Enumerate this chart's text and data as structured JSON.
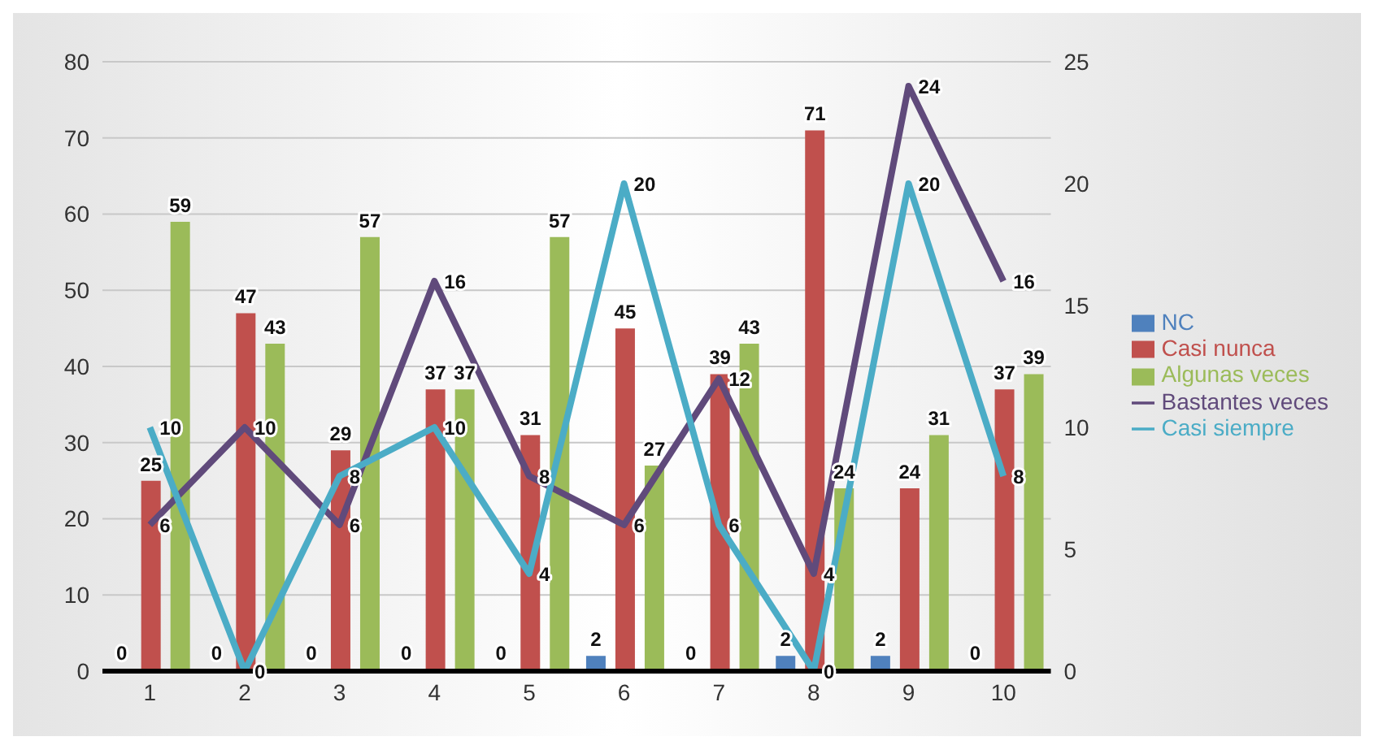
{
  "chart_data": {
    "type": "bar",
    "categories": [
      "1",
      "2",
      "3",
      "4",
      "5",
      "6",
      "7",
      "8",
      "9",
      "10"
    ],
    "series": [
      {
        "name": "NC",
        "color": "#4f81bd",
        "values": [
          0,
          0,
          0,
          0,
          0,
          2,
          0,
          2,
          2,
          0
        ]
      },
      {
        "name": "Casi nunca",
        "color": "#c0504d",
        "values": [
          25,
          47,
          29,
          37,
          31,
          45,
          39,
          71,
          24,
          37
        ]
      },
      {
        "name": "Algunas veces",
        "color": "#9bbb59",
        "values": [
          59,
          43,
          57,
          37,
          57,
          27,
          43,
          24,
          31,
          39
        ]
      },
      {
        "name": "Bastantes veces",
        "color": "#604a7b",
        "type": "line",
        "axis": "y2",
        "values": [
          6,
          10,
          6,
          16,
          8,
          6,
          12,
          4,
          24,
          16
        ]
      },
      {
        "name": "Casi siempre",
        "color": "#4bacc6",
        "type": "line",
        "axis": "y2",
        "values": [
          10,
          0,
          8,
          10,
          4,
          20,
          6,
          0,
          20,
          8
        ]
      }
    ],
    "ylim": [
      0,
      80
    ],
    "yticks": [
      0,
      10,
      20,
      30,
      40,
      50,
      60,
      70,
      80
    ],
    "y2lim": [
      0,
      25
    ],
    "y2ticks": [
      0,
      5,
      10,
      15,
      20,
      25
    ],
    "grid": "y",
    "legend": "right",
    "data_labels": true,
    "marker": "none"
  }
}
